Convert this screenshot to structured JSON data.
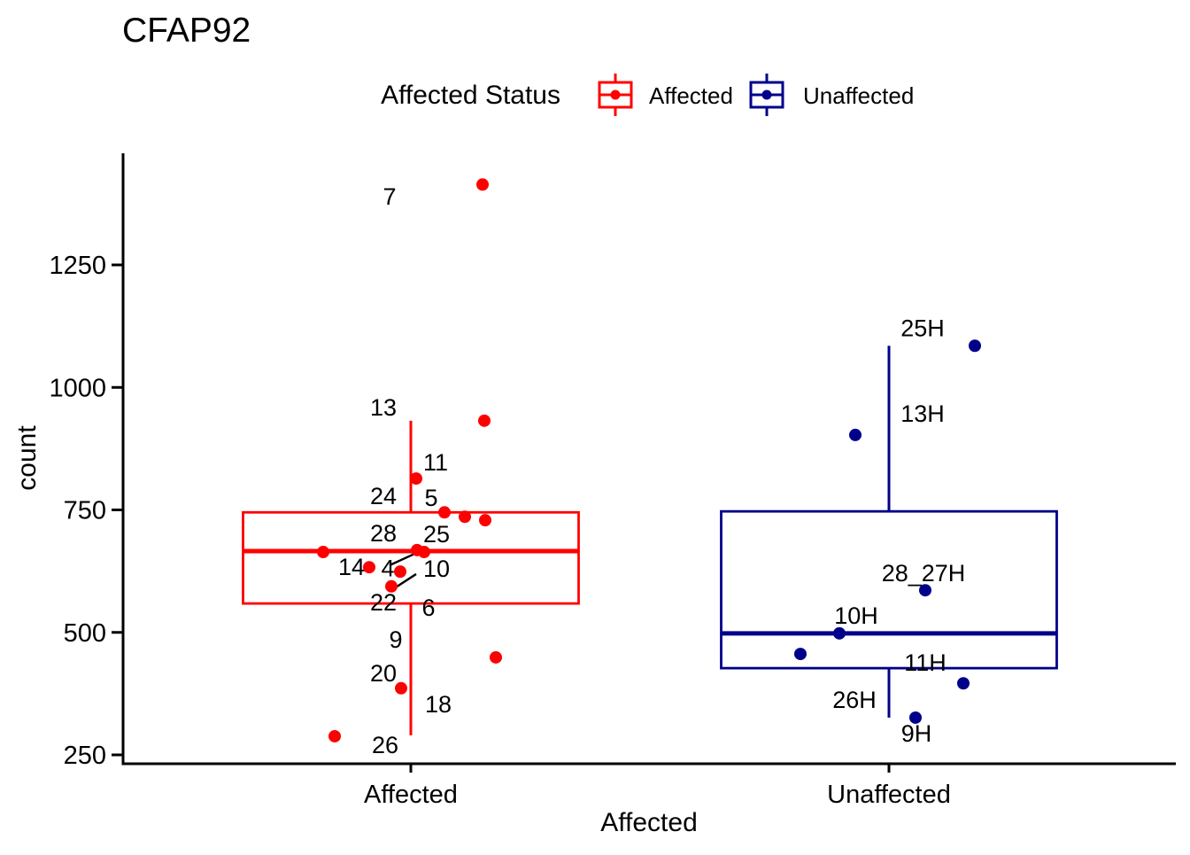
{
  "chart_data": {
    "type": "boxplot",
    "title": "CFAP92",
    "xlabel": "Affected",
    "ylabel": "count",
    "x_categories": [
      "Affected",
      "Unaffected"
    ],
    "y_ticks": [
      250,
      500,
      750,
      1000,
      1250
    ],
    "ylim": [
      232,
      1478
    ],
    "grid": "off",
    "legend": {
      "title": "Affected Status",
      "position": "top",
      "entries": [
        {
          "label": "Affected",
          "color": "#FF0000"
        },
        {
          "label": "Unaffected",
          "color": "#00008B"
        }
      ]
    },
    "groups": [
      {
        "name": "Affected",
        "color": "#FF0000",
        "box": {
          "whisker_low": 290,
          "q1": 559,
          "median": 666,
          "q3": 745,
          "whisker_high": 932
        },
        "points": [
          {
            "label": "7",
            "value": 1414,
            "dx": 81
          },
          {
            "label": "13",
            "value": 932,
            "dx": 83
          },
          {
            "label": "11",
            "value": 814,
            "dx": 6
          },
          {
            "label": "5",
            "value": 745,
            "dx": 38
          },
          {
            "label": "24",
            "value": 736,
            "dx": 61
          },
          {
            "label": "28",
            "value": 729,
            "dx": 84
          },
          {
            "label": "6",
            "value": 664,
            "dx": -99
          },
          {
            "label": "25",
            "value": 668,
            "dx": 7
          },
          {
            "label": "4",
            "value": 664,
            "dx": 15
          },
          {
            "label": "14",
            "value": 633,
            "dx": -47
          },
          {
            "label": "10",
            "value": 624,
            "dx": -12
          },
          {
            "label": "22",
            "value": 594,
            "dx": -22
          },
          {
            "label": "18",
            "value": 449,
            "dx": 96
          },
          {
            "label": "20",
            "value": 386,
            "dx": -11
          },
          {
            "label": "26",
            "value": 288,
            "dx": -86
          }
        ],
        "annotations": [
          {
            "text": "7",
            "value": 1389,
            "dx": -24
          },
          {
            "text": "13",
            "value": 959,
            "dx": -31
          },
          {
            "text": "11",
            "value": 847,
            "dx": 28
          },
          {
            "text": "24",
            "value": 778,
            "dx": -31
          },
          {
            "text": "5",
            "value": 774,
            "dx": 23
          },
          {
            "text": "28",
            "value": 702,
            "dx": -31
          },
          {
            "text": "25",
            "value": 700,
            "dx": 29
          },
          {
            "text": "14",
            "value": 633,
            "dx": -67
          },
          {
            "text": "4",
            "value": 631,
            "dx": -26
          },
          {
            "text": "10",
            "value": 630,
            "dx": 29
          },
          {
            "text": "22",
            "value": 561,
            "dx": -31
          },
          {
            "text": "6",
            "value": 550,
            "dx": 20
          },
          {
            "text": "9",
            "value": 485,
            "dx": -17
          },
          {
            "text": "20",
            "value": 416,
            "dx": -31
          },
          {
            "text": "18",
            "value": 353,
            "dx": 31
          },
          {
            "text": "26",
            "value": 270,
            "dx": -29
          }
        ],
        "leaders": [
          {
            "dx1": -24,
            "v1": 637,
            "dx2": 11,
            "v2": 666
          },
          {
            "dx1": -17,
            "v1": 592,
            "dx2": 6,
            "v2": 619
          }
        ]
      },
      {
        "name": "Unaffected",
        "color": "#00008B",
        "box": {
          "whisker_low": 326,
          "q1": 427,
          "median": 498,
          "q3": 747,
          "whisker_high": 1085
        },
        "points": [
          {
            "label": "25H",
            "value": 1085,
            "dx": 97
          },
          {
            "label": "13H",
            "value": 903,
            "dx": -38
          },
          {
            "label": "28_27H",
            "value": 586,
            "dx": 41
          },
          {
            "label": "10H",
            "value": 498,
            "dx": -56
          },
          {
            "label": "26H",
            "value": 456,
            "dx": -100
          },
          {
            "label": "11H",
            "value": 396,
            "dx": 84
          },
          {
            "label": "9H",
            "value": 326,
            "dx": 30
          }
        ],
        "annotations": [
          {
            "text": "25H",
            "value": 1121,
            "dx": 38
          },
          {
            "text": "13H",
            "value": 946,
            "dx": 38
          },
          {
            "text": "28_27H",
            "value": 621,
            "dx": 39
          },
          {
            "text": "10H",
            "value": 534,
            "dx": -37
          },
          {
            "text": "11H",
            "value": 438,
            "dx": 41
          },
          {
            "text": "26H",
            "value": 362,
            "dx": -39
          },
          {
            "text": "9H",
            "value": 293,
            "dx": 31
          }
        ],
        "leaders": []
      }
    ]
  }
}
